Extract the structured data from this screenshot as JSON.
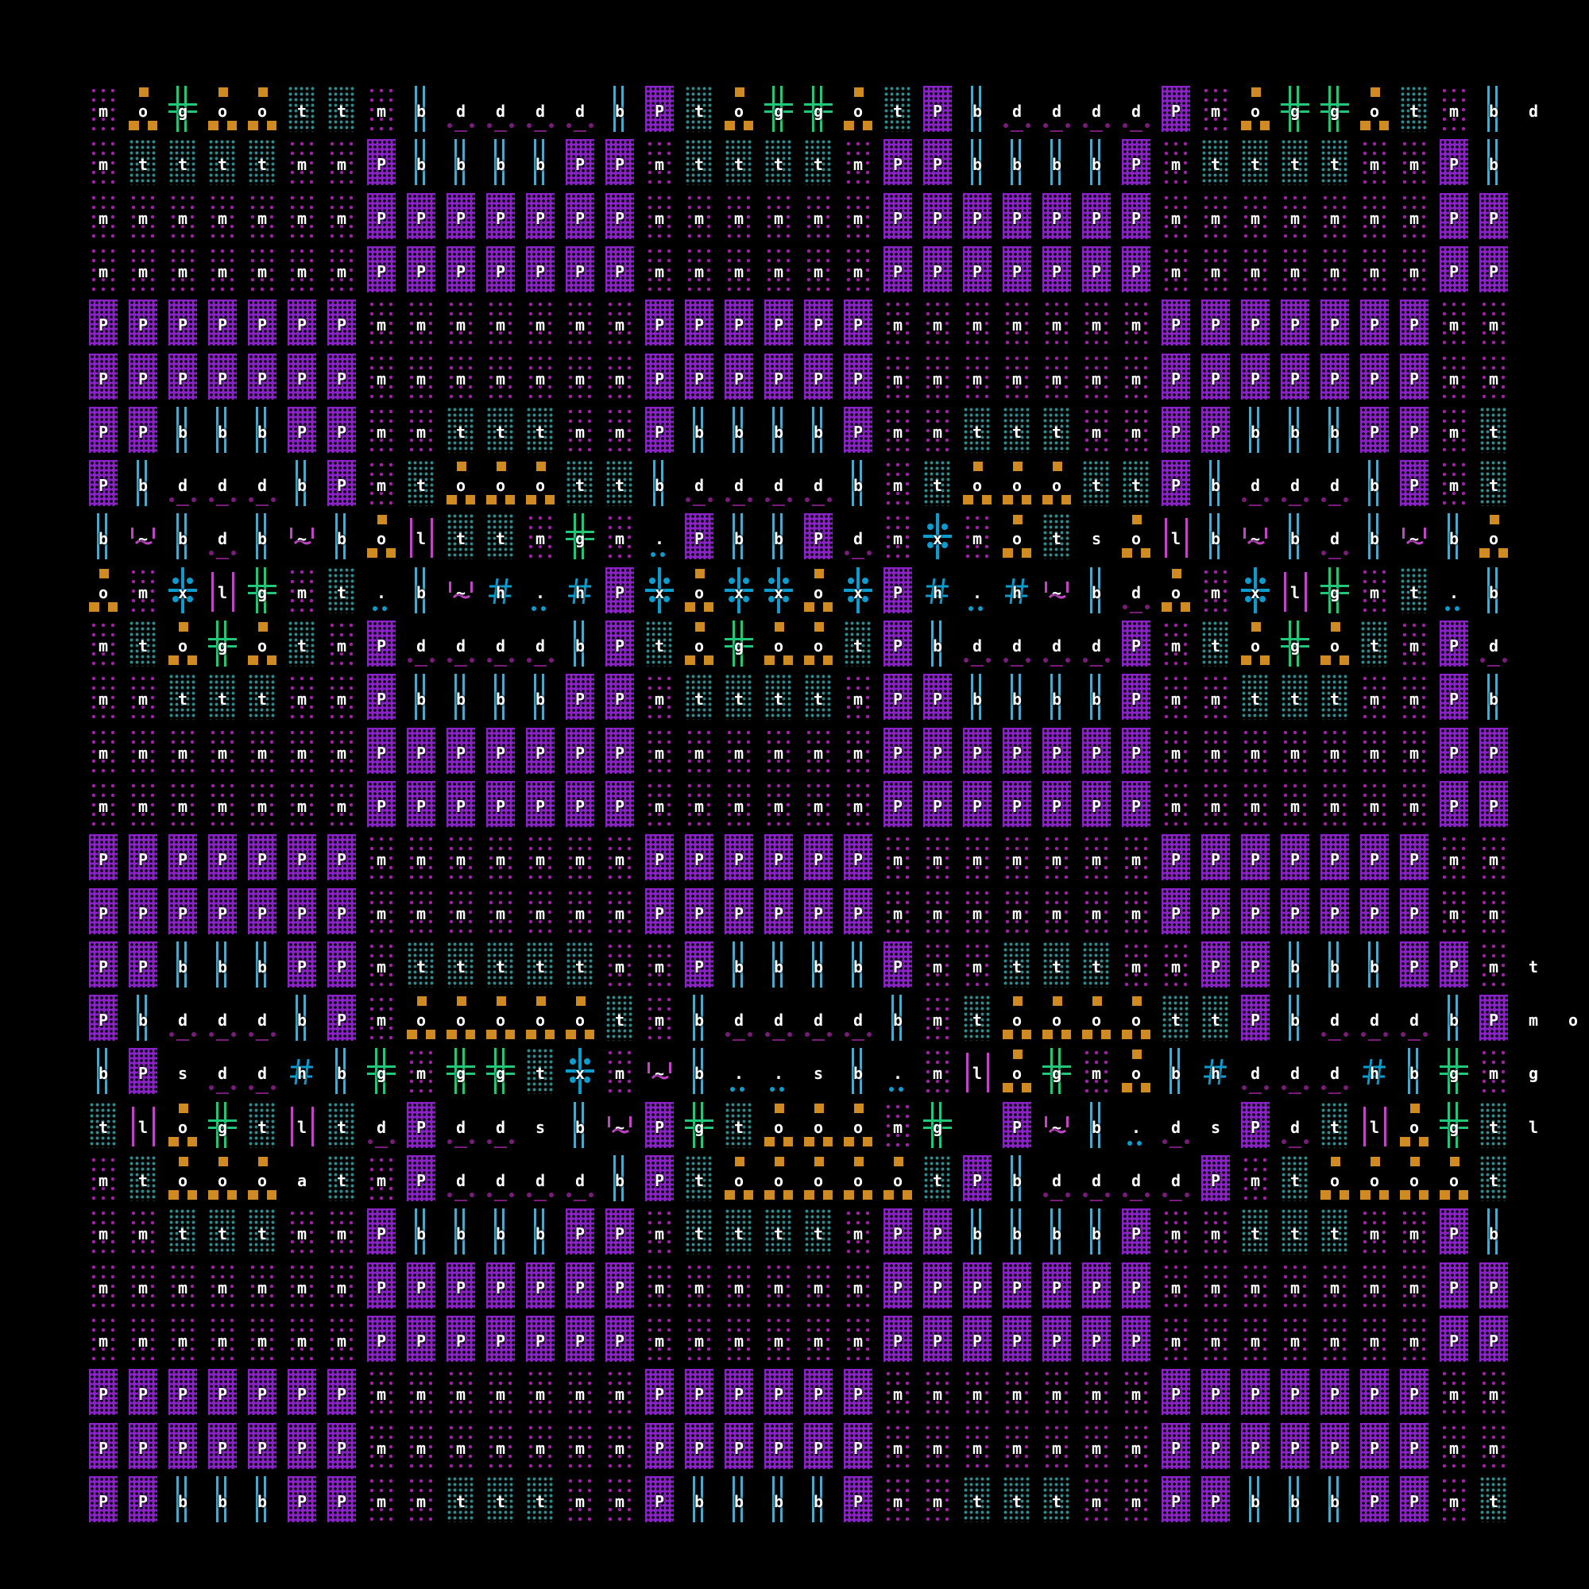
{
  "colors": {
    "background": "#000000",
    "purple_block": "#8B22C8",
    "magenta_dots": "#A020A8",
    "teal_dots": "#2E8A8C",
    "blue_bars": "#4AA8C8",
    "green_cross": "#20C878",
    "orange": "#D08A22",
    "blue_star": "#0A9ED0",
    "pink": "#C444C8",
    "dark_purple": "#7A1A7A"
  },
  "glyph_legend": {
    "P": "dense-purple-block",
    "m": "sparse-magenta-dots",
    "t": "teal-dots",
    "b": "blue-double-bar",
    "g": "green-double-cross",
    "o": "orange-squares",
    "x": "blue-star-cross",
    "~": "pink-tilde",
    "h": "blue-hash",
    "d": "purple-dot-dash",
    ".": "blue-dots",
    "l": "pink-bars",
    "s": "blank"
  },
  "grid": [
    "mogoottmbddddbPtoggotPbddddPmoggotmbd",
    "mttttmmPbbbbPPmttttmPPbbbbPmttttmmPb",
    "mmmmmmmPPPPPPPmmmmmmPPPPPPPmmmmmmmPP",
    "mmmmmmmPPPPPPPmmmmmmPPPPPPPmmmmmmmPP",
    "PPPPPPPmmmmmmmPPPPPPmmmmmmmPPPPPPPmm",
    "PPPPPPPmmmmmmmPPPPPPmmmmmmmPPPPPPPmm",
    "PPbbbPPmmtttmmPbbbbPmmtttmmPPbbbPPmt",
    "PbdddbPmtooottbddddbmtooottPbdddbPmt",
    "b~bdb~bolttmgm.PbbPdmxmotsolb~bdb~bo",
    "omxlgmt.b~h.hPxoxxoxPh.h~bdomxlgmt.b",
    "mtogotmPddddbPtogootPbddddPmtogotmPd",
    "mmtttmmPbbbbPPmttttmPPbbbbPmmtttmmPb",
    "mmmmmmmPPPPPPPmmmmmmPPPPPPPmmmmmmmPP",
    "mmmmmmmPPPPPPPmmmmmmPPPPPPPmmmmmmmPP",
    "PPPPPPPmmmmmmmPPPPPPmmmmmmmPPPPPPPmm",
    "PPPPPPPmmmmmmmPPPPPPmmmmmmmPPPPPPPmm",
    "PPbbbPPmtttttmmPbbbbPmmtttmmPPbbbPPmt",
    "PbdddbPmoooootmbddddbmtoooottPbdddbPmo",
    "bPsddhbgmggtxm~b..sb.mlogmobhdddhbgmg",
    "tlogtltdPddsb~Pgtooomg P~b.dsPdtlogtl",
    "mtoooatmPddddbPtoooootPbddddPmtoooot",
    "mmtttmmPbbbbPPmttttmPPbbbbPmmtttmmPb",
    "mmmmmmmPPPPPPPmmmmmmPPPPPPPmmmmmmmPP",
    "mmmmmmmPPPPPPPmmmmmmPPPPPPPmmmmmmmPP",
    "PPPPPPPmmmmmmmPPPPPPmmmmmmmPPPPPPPmm",
    "PPPPPPPmmmmmmmPPPPPPmmmmmmmPPPPPPPmm",
    "PPbbbPPmmtttmmPbbbbPmmtttmmPPbbbPPmt"
  ]
}
